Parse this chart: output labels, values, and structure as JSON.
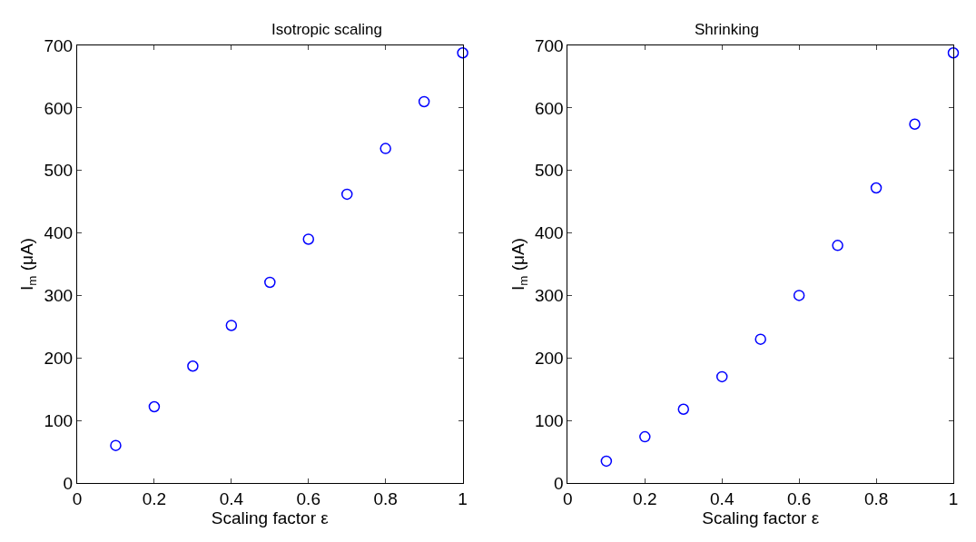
{
  "chart_data": [
    {
      "type": "scatter",
      "title": "Isotropic scaling",
      "xlabel": "Scaling factor ε",
      "ylabel": "I$_{m}$ (μA)",
      "marker": "circle",
      "xlim": [
        0,
        1
      ],
      "xticks": [
        0,
        0.2,
        0.4,
        0.6,
        0.8,
        1
      ],
      "ylim": [
        0,
        700
      ],
      "yticks": [
        0,
        100,
        200,
        300,
        400,
        500,
        600,
        700
      ],
      "series": [
        {
          "color": "#0000ff",
          "x": [
            0.1,
            0.2,
            0.3,
            0.4,
            0.5,
            0.6,
            0.7,
            0.8,
            0.9,
            1.0
          ],
          "values": [
            60,
            122,
            187,
            252,
            321,
            390,
            462,
            535,
            610,
            688
          ]
        }
      ]
    },
    {
      "type": "scatter",
      "title": "Shrinking",
      "xlabel": "Scaling factor ε",
      "ylabel": "I$_{m}$ (μA)",
      "marker": "circle",
      "xlim": [
        0,
        1
      ],
      "xticks": [
        0,
        0.2,
        0.4,
        0.6,
        0.8,
        1
      ],
      "ylim": [
        0,
        700
      ],
      "yticks": [
        0,
        100,
        200,
        300,
        400,
        500,
        600,
        700
      ],
      "series": [
        {
          "color": "#0000ff",
          "x": [
            0.1,
            0.2,
            0.3,
            0.4,
            0.5,
            0.6,
            0.7,
            0.8,
            0.9,
            1.0
          ],
          "values": [
            35,
            74,
            118,
            170,
            230,
            300,
            380,
            472,
            574,
            688
          ]
        }
      ]
    }
  ]
}
